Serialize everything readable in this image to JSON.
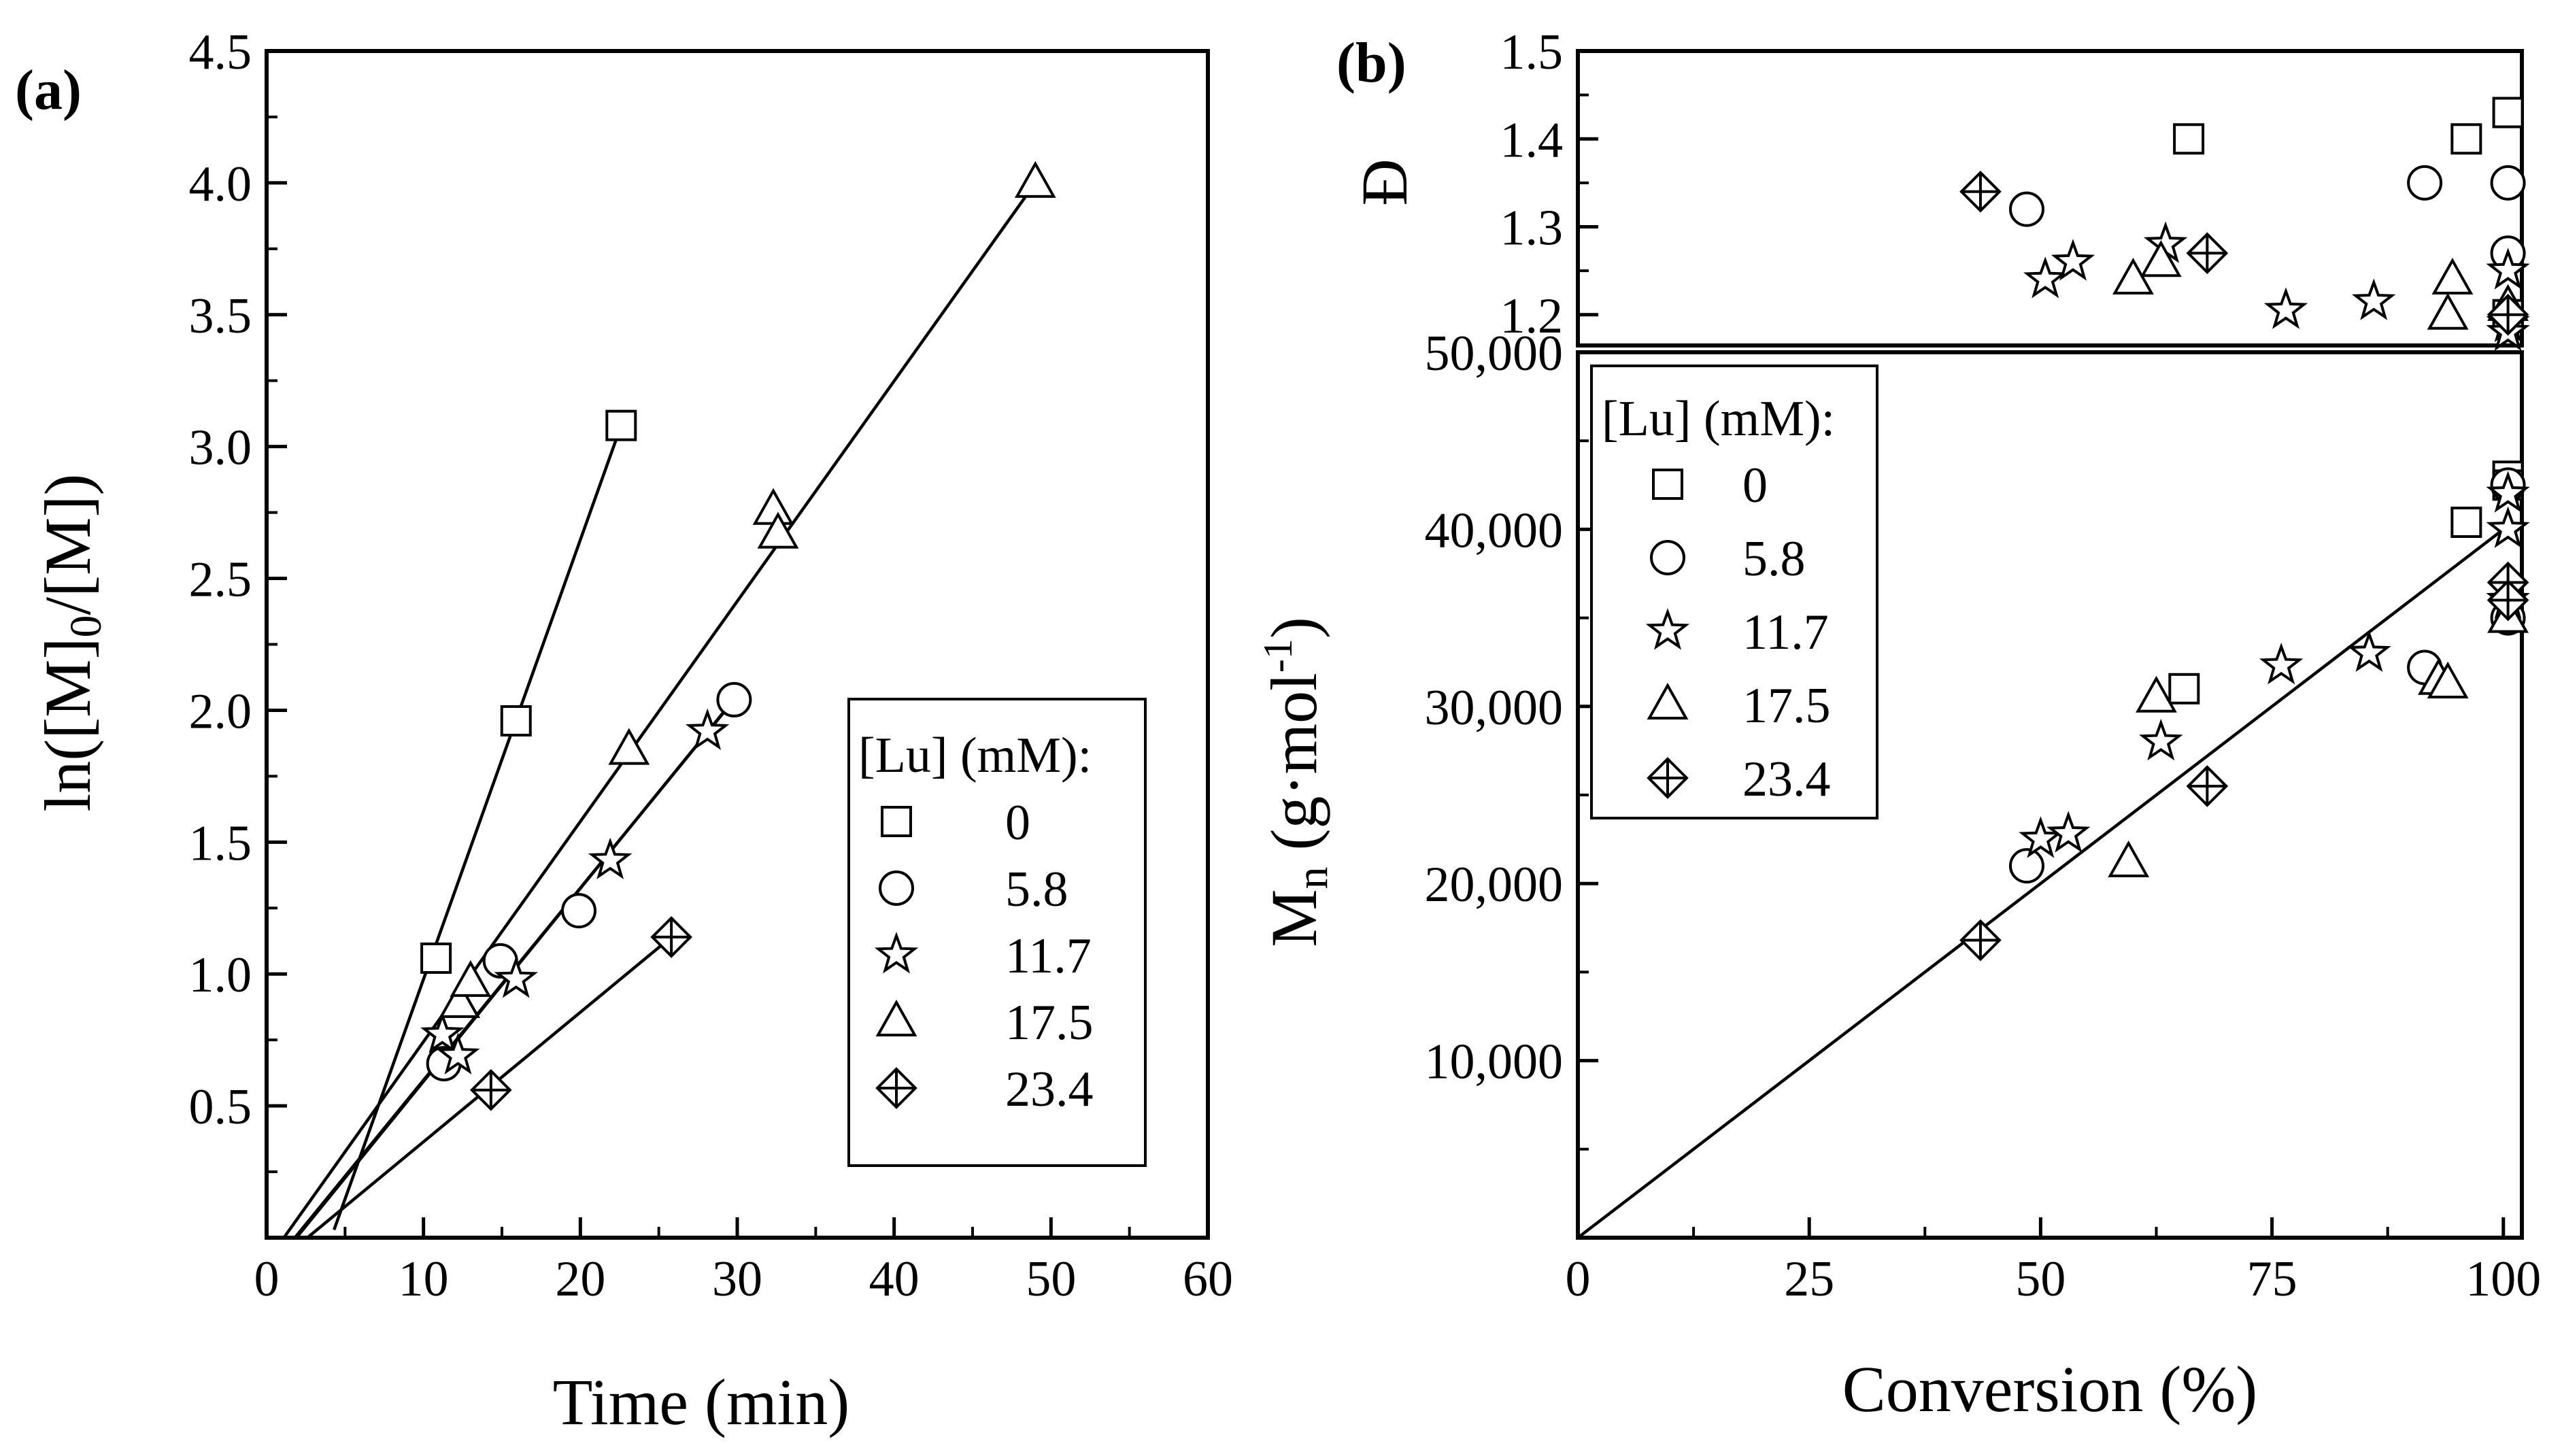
{
  "chart_data": [
    {
      "id": "a",
      "panel_label": "(a)",
      "type": "scatter",
      "xlabel": "Time (min)",
      "ylabel": [
        "ln([M]",
        "0",
        "/[M])"
      ],
      "xlim": [
        0,
        60
      ],
      "ylim": [
        0,
        4.5
      ],
      "xticks": [
        0,
        10,
        20,
        30,
        40,
        50,
        60
      ],
      "yticks": [
        0.5,
        1.0,
        1.5,
        2.0,
        2.5,
        3.0,
        3.5,
        4.0,
        4.5
      ],
      "ytick_labels": [
        "0.5",
        "1.0",
        "1.5",
        "2.0",
        "2.5",
        "3.0",
        "3.5",
        "4.0",
        "4.5"
      ],
      "legend": {
        "title": "[Lu] (mM):",
        "position": "lower-right",
        "labels": [
          "0",
          "5.8",
          "11.7",
          "17.5",
          "23.4"
        ]
      },
      "series": [
        {
          "name": "0",
          "marker": "square",
          "x": [
            10.8,
            15.9,
            22.6
          ],
          "y": [
            1.06,
            1.96,
            3.08
          ]
        },
        {
          "name": "5.8",
          "marker": "circle",
          "x": [
            11.3,
            14.9,
            19.9,
            29.8
          ],
          "y": [
            0.66,
            1.05,
            1.24,
            2.04
          ]
        },
        {
          "name": "11.7",
          "marker": "star",
          "x": [
            11.2,
            12.2,
            15.9,
            21.9,
            28.1
          ],
          "y": [
            0.77,
            0.69,
            0.98,
            1.43,
            1.92
          ]
        },
        {
          "name": "17.5",
          "marker": "triangle",
          "x": [
            12.3,
            13.0,
            23.1,
            32.3,
            32.6,
            49.0
          ],
          "y": [
            0.89,
            0.97,
            1.85,
            2.76,
            2.67,
            4.0
          ]
        },
        {
          "name": "23.4",
          "marker": "diamond",
          "x": [
            14.3,
            25.8
          ],
          "y": [
            0.56,
            1.14
          ]
        }
      ],
      "fit_lines": [
        {
          "series": "0",
          "x": [
            4.3,
            22.6
          ],
          "y": [
            0.03,
            3.08
          ]
        },
        {
          "series": "5.8",
          "x": [
            1.8,
            29.8
          ],
          "y": [
            0.0,
            2.04
          ]
        },
        {
          "series": "11.7",
          "x": [
            1.9,
            29.5
          ],
          "y": [
            0.0,
            2.02
          ]
        },
        {
          "series": "17.5",
          "x": [
            1.1,
            49.0
          ],
          "y": [
            0.0,
            4.0
          ]
        },
        {
          "series": "23.4",
          "x": [
            2.6,
            25.8
          ],
          "y": [
            0.0,
            1.14
          ]
        }
      ]
    },
    {
      "id": "b_top",
      "panel_label": "(b)",
      "type": "scatter",
      "xlabel": "",
      "ylabel": "Đ",
      "xlim": [
        0,
        102
      ],
      "ylim": [
        1.165,
        1.5
      ],
      "yticks": [
        1.2,
        1.3,
        1.4,
        1.5
      ],
      "ytick_labels": [
        "1.2",
        "1.3",
        "1.4",
        "1.5"
      ],
      "series": [
        {
          "name": "0",
          "marker": "square",
          "x": [
            66,
            96,
            100.5,
            100.5
          ],
          "y": [
            1.4,
            1.4,
            1.43,
            1.2
          ]
        },
        {
          "name": "5.8",
          "marker": "circle",
          "x": [
            48.5,
            91.5,
            100.5,
            100.5
          ],
          "y": [
            1.32,
            1.35,
            1.35,
            1.27
          ]
        },
        {
          "name": "11.7",
          "marker": "star",
          "x": [
            50.5,
            53.5,
            63.5,
            76.5,
            86,
            100.5,
            100.5,
            100.5
          ],
          "y": [
            1.24,
            1.26,
            1.28,
            1.205,
            1.215,
            1.25,
            1.19,
            1.18
          ]
        },
        {
          "name": "17.5",
          "marker": "triangle",
          "x": [
            60,
            63,
            94.5,
            94,
            100.5
          ],
          "y": [
            1.24,
            1.26,
            1.24,
            1.2,
            1.21
          ]
        },
        {
          "name": "23.4",
          "marker": "diamond",
          "x": [
            43.5,
            68,
            100.5
          ],
          "y": [
            1.34,
            1.27,
            1.2
          ]
        }
      ]
    },
    {
      "id": "b_bottom",
      "type": "scatter",
      "xlabel": "Conversion (%)",
      "ylabel": [
        "M",
        "n",
        " (g·mol",
        "-1",
        ")"
      ],
      "xlim": [
        0,
        102
      ],
      "ylim": [
        0,
        50000
      ],
      "xticks": [
        0,
        25,
        50,
        75,
        100
      ],
      "yticks": [
        10000,
        20000,
        30000,
        40000,
        50000
      ],
      "ytick_labels": [
        "10,000",
        "20,000",
        "30,000",
        "40,000",
        "50,000"
      ],
      "legend": {
        "title": "[Lu] (mM):",
        "position": "top-left",
        "labels": [
          "0",
          "5.8",
          "11.7",
          "17.5",
          "23.4"
        ]
      },
      "series": [
        {
          "name": "0",
          "marker": "square",
          "x": [
            65.5,
            96,
            100.5,
            100.5
          ],
          "y": [
            31000,
            40400,
            43000,
            42500
          ]
        },
        {
          "name": "5.8",
          "marker": "circle",
          "x": [
            48.5,
            91.5,
            100.5,
            100.5
          ],
          "y": [
            21000,
            32200,
            42500,
            35000
          ]
        },
        {
          "name": "11.7",
          "marker": "star",
          "x": [
            50,
            53,
            63,
            76,
            85.5,
            100.5,
            100.5,
            100.5
          ],
          "y": [
            22500,
            22800,
            28000,
            32300,
            33000,
            42000,
            40000,
            36000
          ]
        },
        {
          "name": "17.5",
          "marker": "triangle",
          "x": [
            59.5,
            62.5,
            93,
            94,
            100.5
          ],
          "y": [
            21200,
            30500,
            31500,
            31300,
            35000
          ]
        },
        {
          "name": "23.4",
          "marker": "diamond",
          "x": [
            43.5,
            68,
            100.5,
            100.5
          ],
          "y": [
            16800,
            25500,
            37000,
            36000
          ]
        }
      ],
      "fit_lines": [
        {
          "series": "theory",
          "x": [
            0,
            100.5
          ],
          "y": [
            0,
            40200
          ]
        }
      ]
    }
  ]
}
